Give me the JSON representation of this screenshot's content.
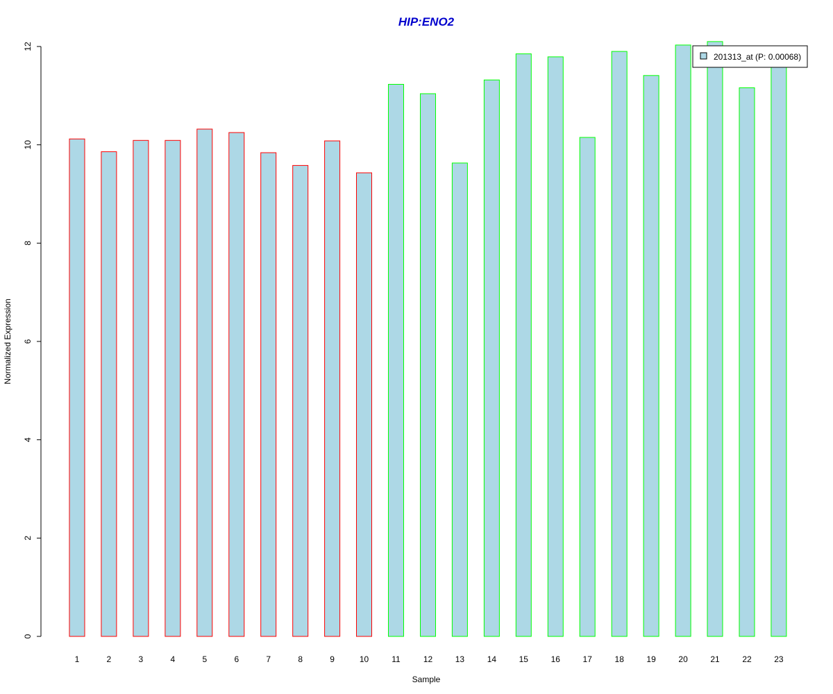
{
  "chart_data": {
    "type": "bar",
    "title": "HIP:ENO2",
    "xlabel": "Sample",
    "ylabel": "Normalized Expression",
    "categories": [
      "1",
      "2",
      "3",
      "4",
      "5",
      "6",
      "7",
      "8",
      "9",
      "10",
      "11",
      "12",
      "13",
      "14",
      "15",
      "16",
      "17",
      "18",
      "19",
      "20",
      "21",
      "22",
      "23"
    ],
    "values": [
      10.12,
      9.86,
      10.09,
      10.09,
      10.32,
      10.25,
      9.84,
      9.58,
      10.08,
      9.43,
      11.23,
      11.04,
      9.63,
      11.32,
      11.85,
      11.79,
      10.15,
      11.9,
      11.41,
      12.03,
      12.1,
      11.16,
      11.63
    ],
    "group_border_colors": [
      "#ff0000",
      "#ff0000",
      "#ff0000",
      "#ff0000",
      "#ff0000",
      "#ff0000",
      "#ff0000",
      "#ff0000",
      "#ff0000",
      "#ff0000",
      "#00ff00",
      "#00ff00",
      "#00ff00",
      "#00ff00",
      "#00ff00",
      "#00ff00",
      "#00ff00",
      "#00ff00",
      "#00ff00",
      "#00ff00",
      "#00ff00",
      "#00ff00",
      "#00ff00"
    ],
    "bar_fill_color": "#add8e6",
    "title_color": "#0000cd",
    "ylim": [
      0,
      12
    ],
    "yticks": [
      0,
      2,
      4,
      6,
      8,
      10,
      12
    ],
    "grid": false,
    "legend": {
      "placement": "top-right",
      "entries": [
        {
          "label": "201313_at (P: 0.00068)",
          "color": "#add8e6"
        }
      ]
    }
  }
}
